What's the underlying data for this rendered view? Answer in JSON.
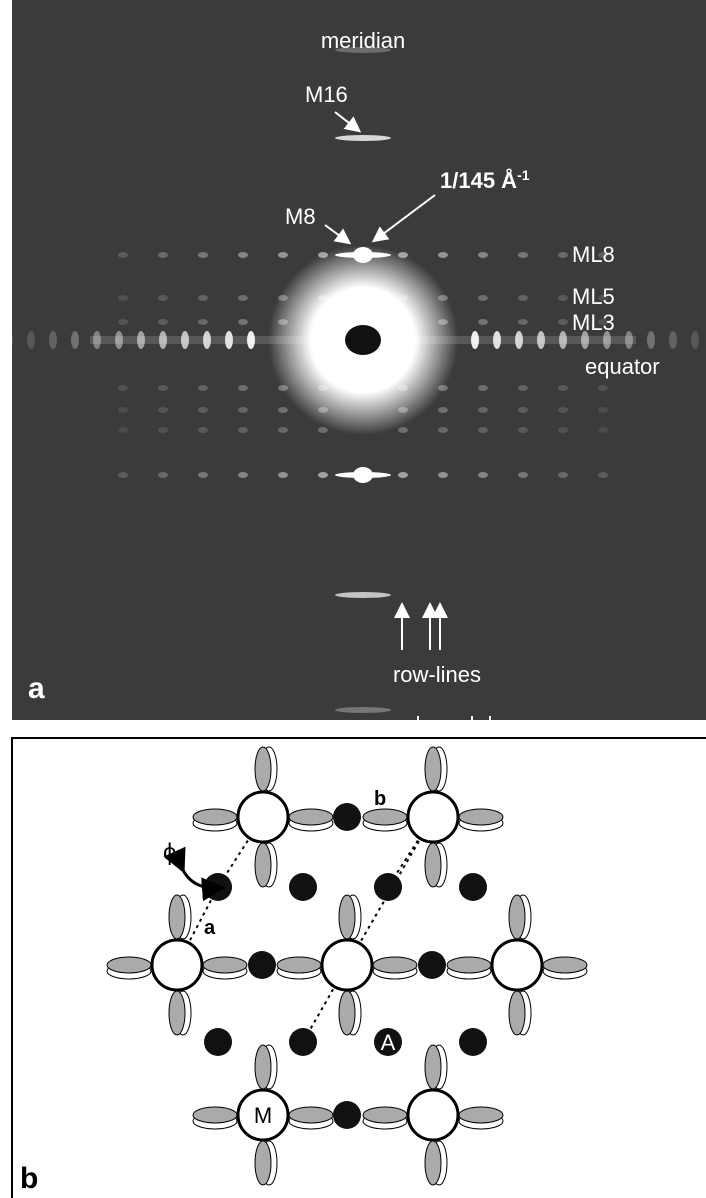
{
  "panel_a": {
    "label": "a",
    "meridian": "meridian",
    "m16": "M16",
    "spacing": "1/145 Å",
    "spacing_sup": "-1",
    "m8": "M8",
    "ml8": "ML8",
    "ml5": "ML5",
    "ml3": "ML3",
    "equator": "equator",
    "row_lines": "row-lines"
  },
  "panel_b": {
    "label": "b",
    "b_axis": "b",
    "phi": "ϕ",
    "a_axis": "a",
    "actin": "A",
    "myosin": "M"
  }
}
